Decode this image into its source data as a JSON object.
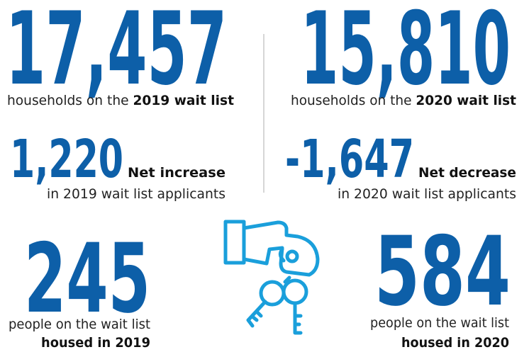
{
  "wait_list": [
    {
      "number": "17,457",
      "text": "households on the",
      "emphasis": "2019 wait list"
    },
    {
      "number": "15,810",
      "text": "households on the",
      "emphasis": "2020 wait list"
    }
  ],
  "change": [
    {
      "number": "1,220",
      "emphasis": "Net increase",
      "text": "in 2019 wait list applicants"
    },
    {
      "number": "-1,647",
      "emphasis": "Net decrease",
      "text": "in 2020 wait list applicants"
    }
  ],
  "housed": [
    {
      "number": "245",
      "text": "people on the wait list",
      "emphasis": "housed in 2019"
    },
    {
      "number": "584",
      "text": "people on the wait list",
      "emphasis": "housed in 2020"
    }
  ]
}
